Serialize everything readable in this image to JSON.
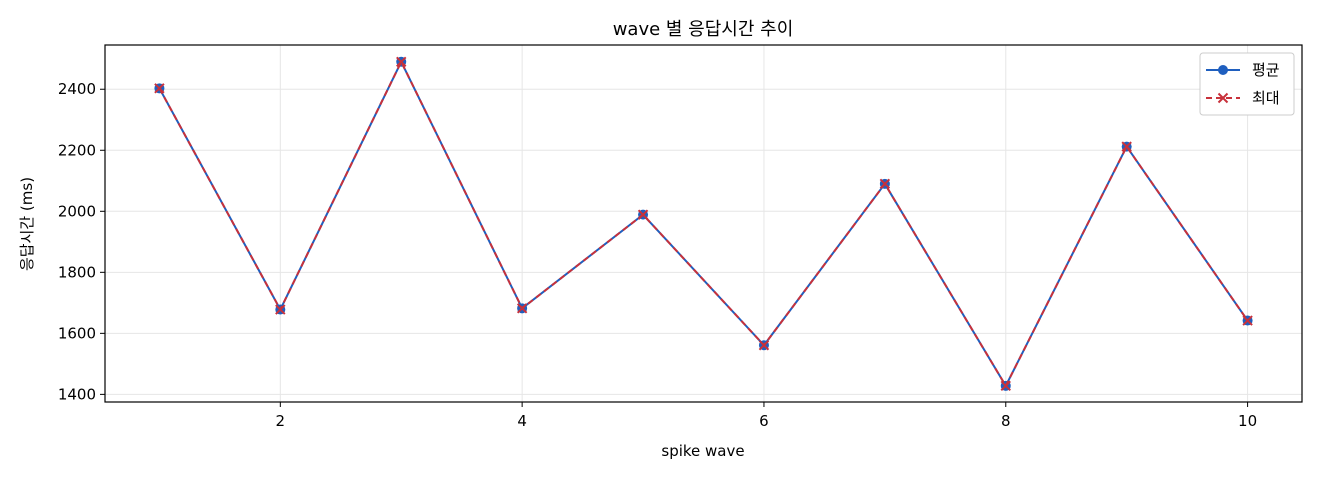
{
  "chart_data": {
    "type": "line",
    "title": "wave 별 응답시간 추이",
    "xlabel": "spike wave",
    "ylabel": "응답시간 (ms)",
    "x": [
      1,
      2,
      3,
      4,
      5,
      6,
      7,
      8,
      9,
      10
    ],
    "xlim": [
      0.55,
      10.45
    ],
    "ylim": [
      1375,
      2545
    ],
    "xticks": [
      2,
      4,
      6,
      8,
      10
    ],
    "yticks": [
      1400,
      1600,
      1800,
      2000,
      2200,
      2400
    ],
    "grid": true,
    "legend_position": "top-right",
    "series": [
      {
        "name": "평균",
        "values": [
          2403,
          1678,
          2490,
          1682,
          1989,
          1561,
          2090,
          1428,
          2212,
          1642
        ],
        "color": "#1f5fbf",
        "line_style": "solid",
        "marker": "circle"
      },
      {
        "name": "최대",
        "values": [
          2403,
          1678,
          2490,
          1682,
          1989,
          1561,
          2090,
          1428,
          2212,
          1642
        ],
        "color": "#c8313b",
        "line_style": "dashed",
        "marker": "x"
      }
    ]
  }
}
